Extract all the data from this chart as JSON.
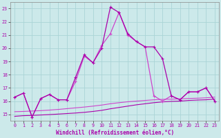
{
  "xlabel": "Windchill (Refroidissement éolien,°C)",
  "bg_color": "#cce9ea",
  "grid_color": "#aad4d6",
  "line_color1": "#aa00aa",
  "line_color2": "#cc44cc",
  "x": [
    0,
    1,
    2,
    3,
    4,
    5,
    6,
    7,
    8,
    9,
    10,
    11,
    12,
    13,
    14,
    15,
    16,
    17,
    18,
    19,
    20,
    21,
    22,
    23
  ],
  "line1": [
    16.3,
    16.6,
    14.8,
    16.2,
    16.5,
    16.1,
    16.1,
    17.8,
    19.5,
    18.9,
    20.0,
    23.1,
    22.7,
    21.1,
    20.5,
    20.1,
    20.1,
    19.2,
    16.4,
    16.1,
    16.7,
    16.7,
    17.0,
    16.0
  ],
  "line2": [
    16.3,
    16.6,
    14.8,
    16.2,
    16.5,
    16.1,
    16.1,
    17.5,
    19.4,
    18.9,
    20.2,
    21.1,
    22.7,
    21.0,
    20.5,
    20.1,
    16.4,
    16.0,
    16.4,
    16.1,
    16.7,
    16.7,
    17.0,
    16.0
  ],
  "line3": [
    14.85,
    14.9,
    14.92,
    14.95,
    14.98,
    15.02,
    15.06,
    15.1,
    15.15,
    15.22,
    15.3,
    15.42,
    15.52,
    15.62,
    15.72,
    15.8,
    15.88,
    15.94,
    15.98,
    16.0,
    16.05,
    16.08,
    16.1,
    16.15
  ],
  "line4": [
    15.2,
    15.22,
    15.25,
    15.28,
    15.32,
    15.37,
    15.43,
    15.49,
    15.55,
    15.62,
    15.7,
    15.8,
    15.88,
    15.95,
    16.0,
    16.05,
    16.1,
    16.13,
    16.15,
    16.17,
    16.2,
    16.22,
    16.25,
    16.3
  ],
  "ylim": [
    14.5,
    23.5
  ],
  "xlim": [
    -0.5,
    23.5
  ],
  "yticks": [
    15,
    16,
    17,
    18,
    19,
    20,
    21,
    22,
    23
  ],
  "xticks": [
    0,
    1,
    2,
    3,
    4,
    5,
    6,
    7,
    8,
    9,
    10,
    11,
    12,
    13,
    14,
    15,
    16,
    17,
    18,
    19,
    20,
    21,
    22,
    23
  ]
}
